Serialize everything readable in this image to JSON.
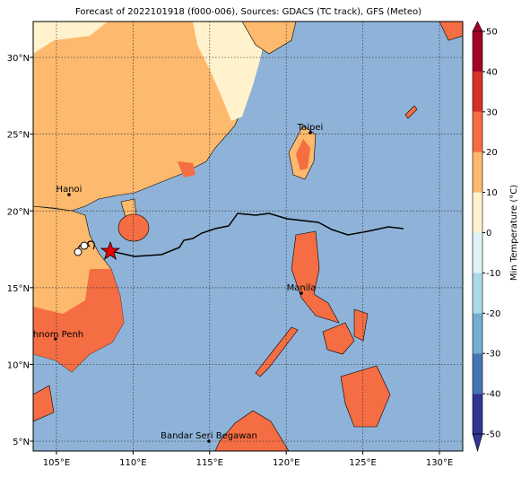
{
  "map": {
    "title": "Forecast of 2022101918 (f000-006), Sources: GDACS (TC track), GFS (Meteo)",
    "xlim": [
      103.48,
      131.52
    ],
    "ylim": [
      4.36,
      32.34
    ],
    "xticks": [
      {
        "value": 105,
        "label": "105°E"
      },
      {
        "value": 110,
        "label": "110°E"
      },
      {
        "value": 115,
        "label": "115°E"
      },
      {
        "value": 120,
        "label": "120°E"
      },
      {
        "value": 125,
        "label": "125°E"
      },
      {
        "value": 130,
        "label": "130°E"
      }
    ],
    "yticks": [
      {
        "value": 5,
        "label": "5°N"
      },
      {
        "value": 10,
        "label": "10°N"
      },
      {
        "value": 15,
        "label": "15°N"
      },
      {
        "value": 20,
        "label": "20°N"
      },
      {
        "value": 25,
        "label": "25°N"
      },
      {
        "value": 30,
        "label": "30°N"
      }
    ],
    "cities": [
      "Hanoi",
      "Taipei",
      "Manila",
      "Phnom Penh",
      "Bandar Seri Begawan"
    ],
    "colorbar": {
      "label": "Min Temperature (°C)",
      "lim": [
        -50,
        50
      ],
      "ticks": [
        -50,
        -40,
        -30,
        -20,
        -10,
        0,
        10,
        20,
        30,
        40,
        50
      ],
      "colors": [
        "#313695",
        "#4575b4",
        "#74add1",
        "#abd9e9",
        "#e0f3f8",
        "#fff2cc",
        "#fdb96d",
        "#f46d43",
        "#d73027",
        "#a50026"
      ]
    }
  }
}
